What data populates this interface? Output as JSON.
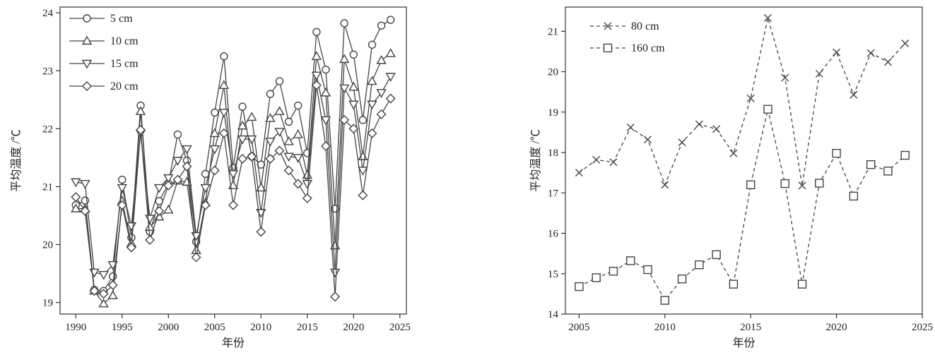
{
  "chart_data": [
    {
      "type": "line",
      "xlabel": "年份",
      "ylabel": "平均温度 /℃",
      "xlim": [
        1988.3,
        2025.7
      ],
      "ylim": [
        18.8,
        24.1
      ],
      "xticks": [
        1990,
        1995,
        2000,
        2005,
        2010,
        2015,
        2020,
        2025
      ],
      "yticks": [
        19,
        20,
        21,
        22,
        23,
        24
      ],
      "legend": "top-left",
      "line_style": "solid",
      "x": [
        1990,
        1991,
        1992,
        1993,
        1994,
        1995,
        1996,
        1997,
        1998,
        1999,
        2000,
        2001,
        2002,
        2003,
        2004,
        2005,
        2006,
        2007,
        2008,
        2009,
        2010,
        2011,
        2012,
        2013,
        2014,
        2015,
        2016,
        2017,
        2018,
        2019,
        2020,
        2021,
        2022,
        2023,
        2024
      ],
      "series": [
        {
          "name": "5 cm",
          "marker": "circle",
          "values": [
            20.68,
            20.76,
            19.22,
            19.2,
            19.45,
            21.12,
            20.12,
            22.4,
            20.22,
            20.75,
            21.05,
            21.9,
            21.45,
            20.05,
            21.22,
            22.28,
            23.25,
            21.32,
            22.38,
            21.52,
            21.38,
            22.6,
            22.82,
            22.12,
            22.4,
            21.58,
            23.67,
            23.02,
            20.62,
            23.82,
            23.28,
            22.15,
            23.45,
            23.78,
            23.88
          ]
        },
        {
          "name": "10 cm",
          "marker": "triangle-up",
          "values": [
            20.62,
            20.62,
            19.2,
            18.98,
            19.12,
            20.75,
            20.02,
            22.3,
            20.3,
            20.48,
            20.6,
            21.1,
            21.08,
            19.9,
            20.72,
            21.92,
            22.75,
            21.02,
            22.05,
            22.2,
            20.98,
            22.18,
            22.3,
            21.78,
            21.9,
            21.2,
            23.25,
            22.62,
            19.98,
            23.2,
            22.72,
            21.52,
            22.82,
            23.18,
            23.3
          ]
        },
        {
          "name": "15 cm",
          "marker": "triangle-down",
          "values": [
            21.08,
            21.05,
            19.52,
            19.48,
            19.65,
            20.98,
            20.32,
            21.92,
            20.45,
            20.98,
            21.15,
            21.45,
            21.65,
            20.15,
            20.98,
            21.65,
            22.28,
            21.22,
            21.82,
            21.82,
            20.55,
            21.78,
            21.95,
            21.52,
            21.5,
            21.05,
            22.92,
            22.15,
            19.52,
            22.7,
            22.42,
            21.28,
            22.42,
            22.62,
            22.9
          ]
        },
        {
          "name": "20 cm",
          "marker": "diamond",
          "values": [
            20.82,
            20.58,
            19.2,
            19.15,
            19.3,
            20.68,
            19.95,
            21.98,
            20.08,
            20.58,
            21.02,
            21.12,
            21.35,
            19.78,
            20.68,
            21.28,
            21.92,
            20.68,
            21.48,
            21.52,
            20.22,
            21.48,
            21.62,
            21.28,
            21.05,
            20.8,
            22.75,
            21.7,
            19.1,
            22.15,
            22.0,
            20.85,
            21.92,
            22.25,
            22.52
          ]
        }
      ]
    },
    {
      "type": "line",
      "xlabel": "年份",
      "ylabel": "平均温度 /℃",
      "xlim": [
        2004.2,
        2025.0
      ],
      "ylim": [
        14.0,
        21.6
      ],
      "xticks": [
        2005,
        2010,
        2015,
        2020,
        2025
      ],
      "yticks": [
        14,
        15,
        16,
        17,
        18,
        19,
        20,
        21
      ],
      "legend": "top-left",
      "line_style": "dashed",
      "x": [
        2005,
        2006,
        2007,
        2008,
        2009,
        2010,
        2011,
        2012,
        2013,
        2014,
        2015,
        2016,
        2017,
        2018,
        2019,
        2020,
        2021,
        2022,
        2023,
        2024
      ],
      "series": [
        {
          "name": "80 cm",
          "marker": "x",
          "values": [
            17.5,
            17.82,
            17.76,
            18.62,
            18.32,
            17.2,
            18.25,
            18.7,
            18.58,
            17.98,
            19.34,
            21.33,
            19.85,
            17.18,
            19.95,
            20.48,
            19.43,
            20.46,
            20.24,
            20.7
          ]
        },
        {
          "name": "160 cm",
          "marker": "square",
          "values": [
            14.68,
            14.9,
            15.06,
            15.32,
            15.1,
            14.34,
            14.87,
            15.22,
            15.47,
            14.74,
            17.2,
            19.07,
            17.23,
            14.74,
            17.24,
            17.98,
            16.92,
            17.7,
            17.54,
            17.93
          ]
        }
      ]
    }
  ]
}
